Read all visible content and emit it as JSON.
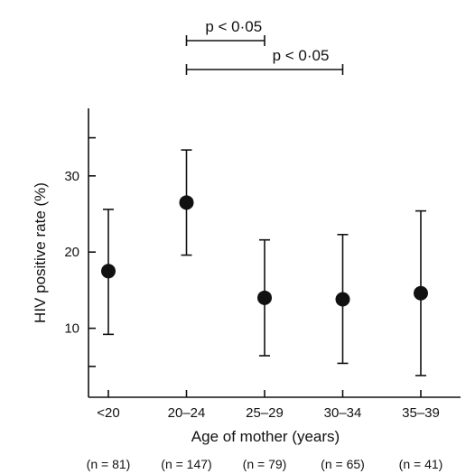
{
  "chart_data": {
    "type": "scatter",
    "title": "",
    "xlabel": "Age of mother (years)",
    "ylabel": "HIV positive rate (%)",
    "ylim": [
      0,
      40
    ],
    "yticks": [
      "10",
      "20",
      "30"
    ],
    "categories": [
      "<20",
      "20–24",
      "25–29",
      "30–34",
      "35–39"
    ],
    "sample_sizes": [
      "(n = 81)",
      "(n = 147)",
      "(n = 79)",
      "(n = 65)",
      "(n = 41)"
    ],
    "series": [
      {
        "values": [
          17.5,
          26.5,
          14.0,
          13.8,
          14.6
        ],
        "error_low": [
          9.2,
          19.6,
          6.4,
          5.4,
          3.8
        ],
        "error_high": [
          25.6,
          33.4,
          21.6,
          22.3,
          25.4
        ]
      }
    ],
    "annotations": [
      {
        "text": "p < 0·05",
        "from": "20–24",
        "to": "25–29"
      },
      {
        "text": "p < 0·05",
        "from": "20–24",
        "to": "30–34"
      }
    ],
    "grid": false,
    "legend": "none"
  }
}
